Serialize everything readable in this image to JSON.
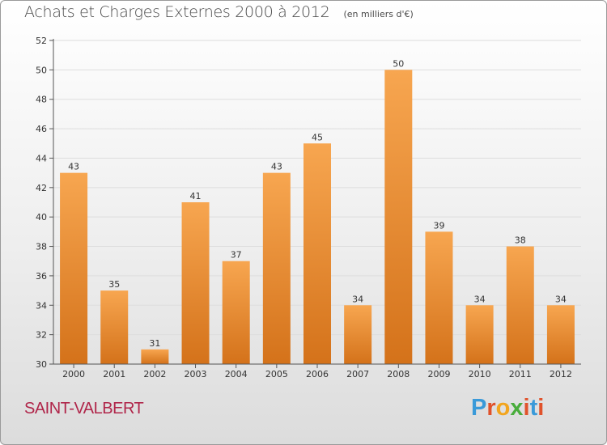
{
  "header": {
    "title": "Achats et Charges Externes 2000 à 2012",
    "unit": "(en milliers d'€)"
  },
  "commune": "SAINT-VALBERT",
  "logo": {
    "text": "Proxiti",
    "colors": [
      "#3a9ad9",
      "#e0522b",
      "#f2a51e",
      "#49ad3c",
      "#e0522b",
      "#3a9ad9",
      "#e0522b"
    ]
  },
  "colors": {
    "bar_top": "#f7a650",
    "bar_bottom": "#d4721a",
    "axis": "#555555",
    "grid": "#dddddd",
    "text": "#333333"
  },
  "chart_data": {
    "type": "bar",
    "categories": [
      "2000",
      "2001",
      "2002",
      "2003",
      "2004",
      "2005",
      "2006",
      "2007",
      "2008",
      "2009",
      "2010",
      "2011",
      "2012"
    ],
    "values": [
      43,
      35,
      31,
      41,
      37,
      43,
      45,
      34,
      50,
      39,
      34,
      38,
      34
    ],
    "ylim": [
      30,
      52
    ],
    "yticks": [
      30,
      32,
      34,
      36,
      38,
      40,
      42,
      44,
      46,
      48,
      50,
      52
    ],
    "grid": true,
    "data_labels": true
  }
}
